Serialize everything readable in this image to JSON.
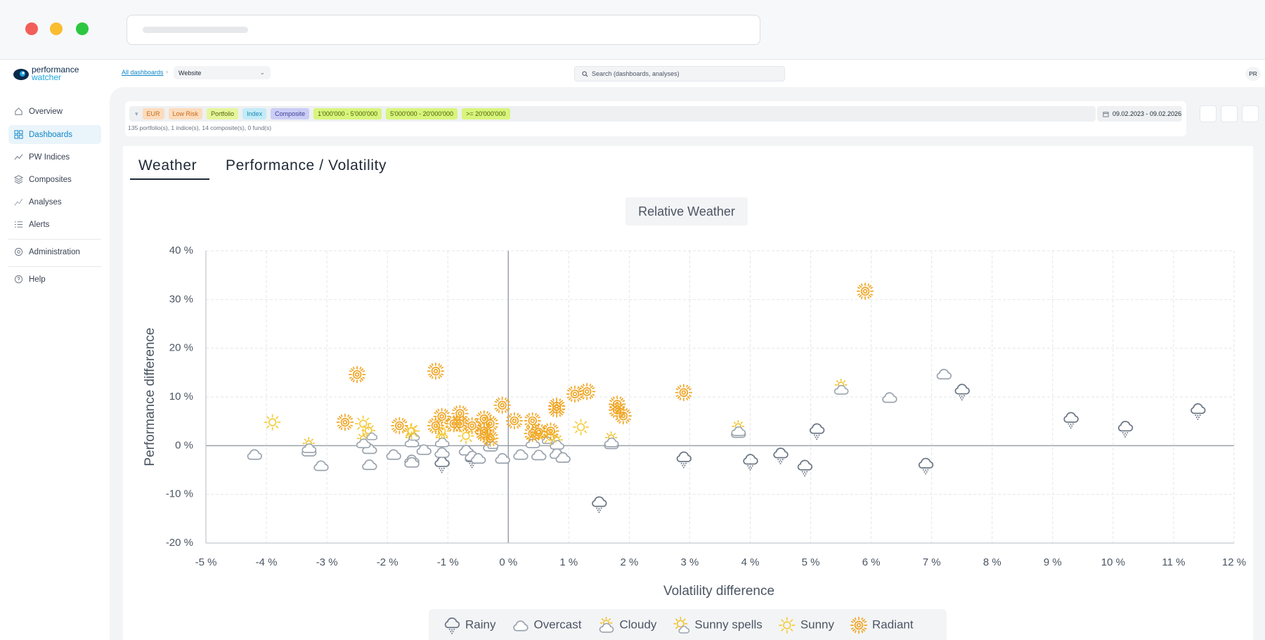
{
  "logo": {
    "line1": "performance",
    "line2": "watcher"
  },
  "sidebar": {
    "items": [
      "Overview",
      "Dashboards",
      "PW Indices",
      "Composites",
      "Analyses",
      "Alerts",
      "Administration",
      "Help"
    ]
  },
  "breadcrumb": {
    "link": "All dashboards",
    "select": "Website"
  },
  "search": {
    "placeholder": "Search (dashboards, analyses)"
  },
  "avatar": "PR",
  "filters": {
    "chips": [
      "EUR",
      "Low Risk",
      "Portfolio",
      "Index",
      "Composite",
      "1'000'000 - 5'000'000",
      "5'000'000 - 20'000'000",
      ">= 20'000'000"
    ],
    "summary": "135 portfolio(s), 1 indice(s), 14 composite(s), 0 fund(s)",
    "date_range": "09.02.2023 - 09.02.2026"
  },
  "tabs": [
    "Weather",
    "Performance / Volatility"
  ],
  "chart_data": {
    "type": "scatter",
    "title": "Relative Weather",
    "x_label": "Volatility difference",
    "y_label": "Performance difference",
    "xlim": [
      -5,
      12
    ],
    "ylim": [
      -20,
      40
    ],
    "xticks": [
      {
        "value": -5,
        "label": "-5 %"
      },
      {
        "value": -4,
        "label": "-4 %"
      },
      {
        "value": -3,
        "label": "-3 %"
      },
      {
        "value": -2,
        "label": "-2 %"
      },
      {
        "value": -1,
        "label": "-1 %"
      },
      {
        "value": 0,
        "label": "0 %"
      },
      {
        "value": 1,
        "label": "1 %"
      },
      {
        "value": 2,
        "label": "2 %"
      },
      {
        "value": 3,
        "label": "3 %"
      },
      {
        "value": 4,
        "label": "4 %"
      },
      {
        "value": 5,
        "label": "5 %"
      },
      {
        "value": 6,
        "label": "6 %"
      },
      {
        "value": 7,
        "label": "7 %"
      },
      {
        "value": 8,
        "label": "8 %"
      },
      {
        "value": 9,
        "label": "9 %"
      },
      {
        "value": 10,
        "label": "10 %"
      },
      {
        "value": 11,
        "label": "11 %"
      },
      {
        "value": 12,
        "label": "12 %"
      }
    ],
    "yticks": [
      {
        "value": -20,
        "label": "-20 %"
      },
      {
        "value": -10,
        "label": "-10 %"
      },
      {
        "value": 0,
        "label": "0 %"
      },
      {
        "value": 10,
        "label": "10 %"
      },
      {
        "value": 20,
        "label": "20 %"
      },
      {
        "value": 30,
        "label": "30 %"
      },
      {
        "value": 40,
        "label": "40 %"
      }
    ],
    "grid": true,
    "legend": "bottom",
    "series": [
      {
        "name": "Rainy",
        "color": "#6b7684",
        "x": [
          -1.1,
          -0.6,
          1.5,
          2.9,
          4.0,
          4.5,
          4.9,
          5.1,
          6.9,
          7.5,
          9.3,
          10.2,
          11.4
        ],
        "values": [
          -3.8,
          -2.8,
          -12.0,
          -2.8,
          -3.3,
          -2.0,
          -4.5,
          3.0,
          -4.1,
          11.1,
          5.3,
          3.5,
          7.1
        ]
      },
      {
        "name": "Overcast",
        "color": "#9aa3ae",
        "x": [
          -4.2,
          -3.3,
          -3.1,
          -2.3,
          -2.3,
          -1.9,
          -1.6,
          -1.6,
          -1.4,
          -1.1,
          -0.7,
          -0.6,
          -0.5,
          -0.3,
          -0.1,
          0.2,
          0.5,
          0.8,
          0.9,
          1.7,
          3.8,
          6.3,
          7.2
        ],
        "values": [
          -1.7,
          -1.0,
          -4.0,
          -3.8,
          -0.5,
          -1.7,
          -2.8,
          -3.3,
          -0.7,
          -1.3,
          -0.8,
          -2.0,
          -2.5,
          0.0,
          -2.5,
          -1.7,
          -1.8,
          -1.5,
          -2.3,
          0.5,
          2.8,
          10.0,
          14.8
        ]
      },
      {
        "name": "Cloudy",
        "color": "#f2c230",
        "x": [
          -3.3,
          -2.4,
          -1.6,
          -1.1,
          0.4,
          0.8,
          1.7,
          3.8,
          5.5
        ],
        "values": [
          0.0,
          1.0,
          1.2,
          1.2,
          1.0,
          0.7,
          1.2,
          3.5,
          12.0
        ]
      },
      {
        "name": "Sunny spells",
        "color": "#f2c230",
        "x": [
          -2.3,
          -1.6,
          -0.3,
          0.6
        ],
        "values": [
          2.8,
          2.7,
          1.0,
          2.0
        ]
      },
      {
        "name": "Sunny",
        "color": "#f6cc3c",
        "x": [
          -3.9,
          -2.4,
          -1.6,
          -1.1,
          -0.7,
          0.7,
          1.2
        ],
        "values": [
          4.8,
          4.5,
          3.0,
          3.0,
          2.0,
          1.8,
          3.8
        ]
      },
      {
        "name": "Radiant",
        "color": "#f0a626",
        "x": [
          -2.5,
          -1.2,
          -2.7,
          -1.8,
          -1.2,
          -1.1,
          -0.9,
          -0.8,
          -0.8,
          -0.6,
          -0.4,
          -0.4,
          -0.4,
          -0.3,
          -0.3,
          -0.1,
          0.1,
          0.4,
          0.4,
          0.5,
          0.7,
          0.8,
          0.8,
          1.1,
          1.3,
          1.8,
          1.8,
          1.9,
          2.9,
          5.9
        ],
        "values": [
          14.6,
          15.3,
          4.8,
          4.1,
          4.1,
          6.0,
          4.5,
          4.5,
          6.6,
          4.1,
          5.5,
          3.0,
          2.5,
          4.5,
          1.5,
          8.3,
          5.1,
          5.1,
          2.5,
          2.8,
          3.0,
          8.1,
          7.5,
          10.6,
          11.1,
          8.5,
          7.3,
          6.1,
          10.9,
          31.7
        ]
      }
    ]
  }
}
